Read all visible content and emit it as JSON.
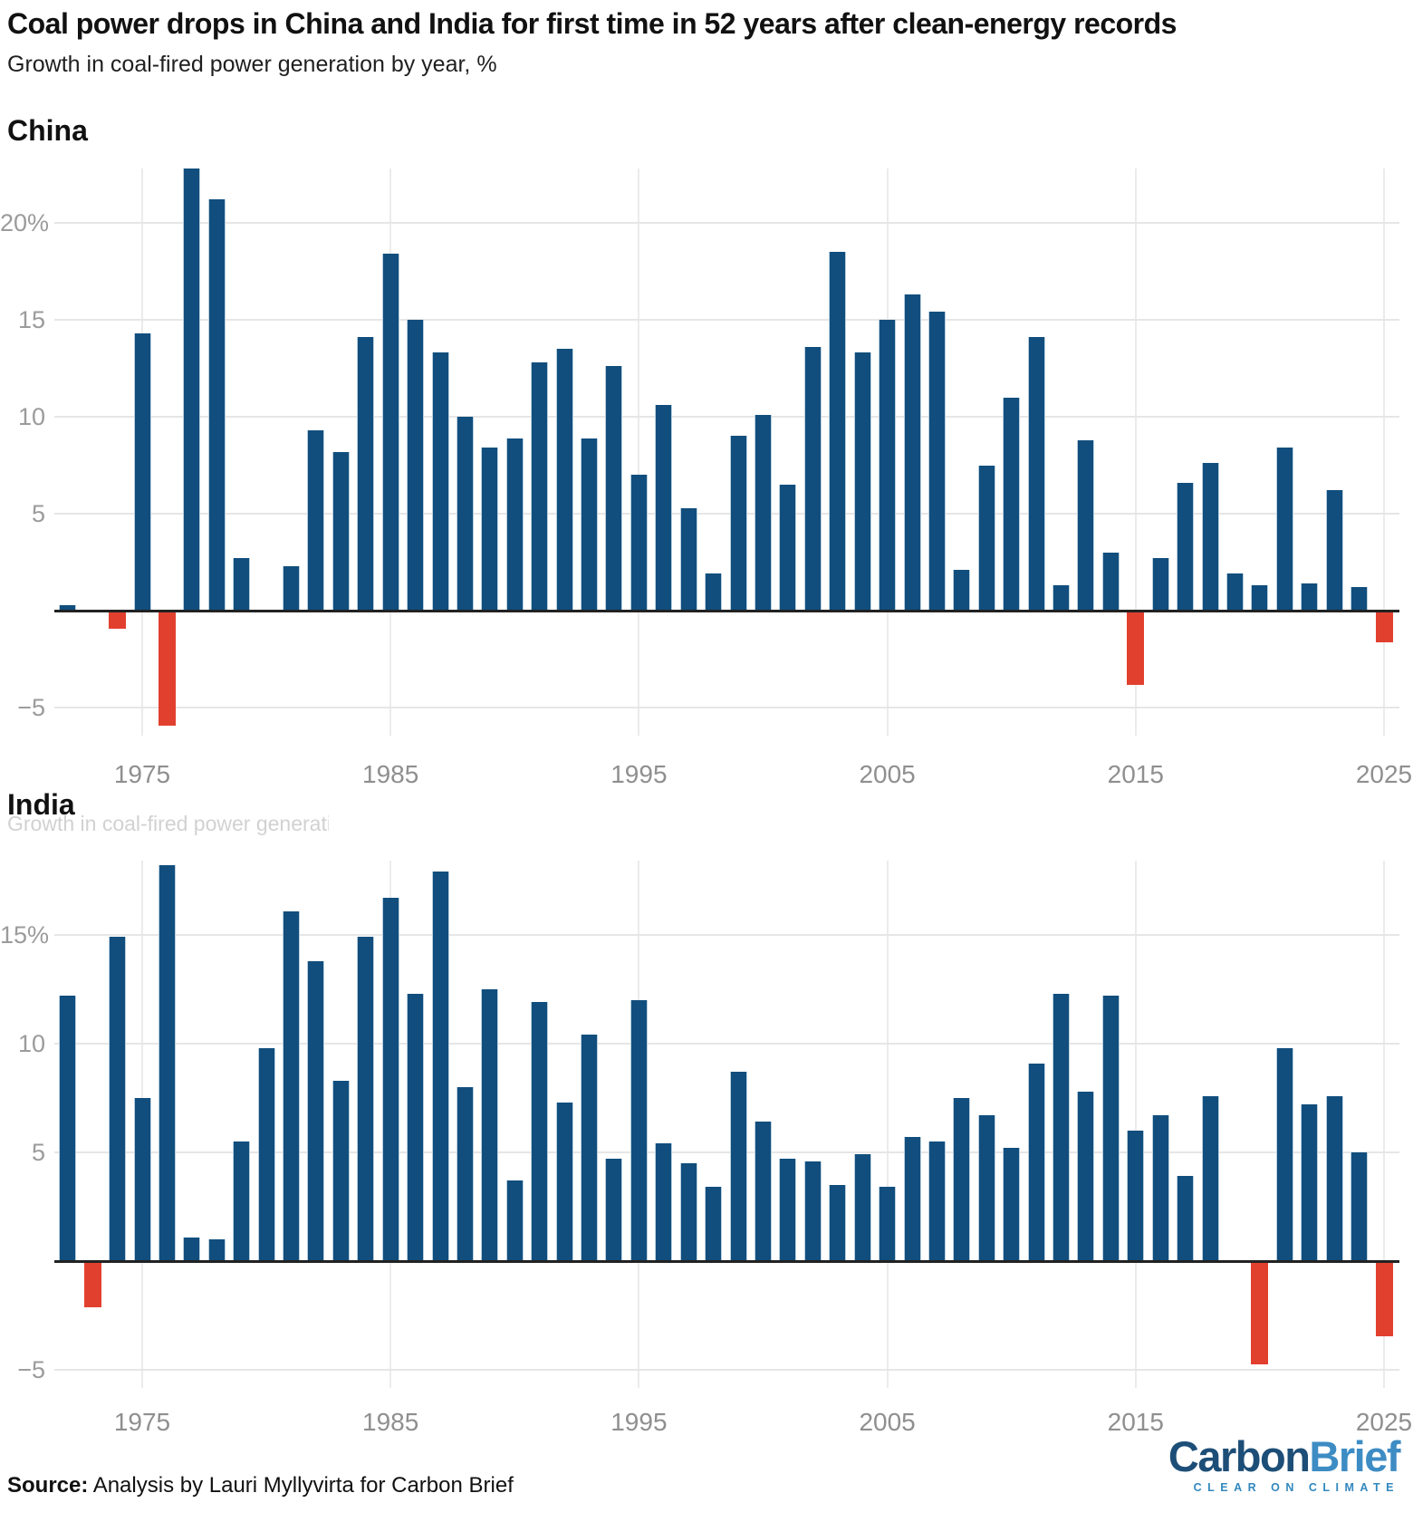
{
  "header": {
    "title": "Coal power drops in China and India for first time in 52 years after clean-energy records",
    "subtitle": "Growth in coal-fired power generation by year, %"
  },
  "colors": {
    "bar_positive": "#114e7d",
    "bar_negative": "#e2402f",
    "axis": "#222222",
    "gridline": "#e6e6e6",
    "tick_label": "#9b9b9b",
    "logo_carbon": "#1d4e77",
    "logo_brief": "#3d8cc4",
    "logo_tagline": "#3188be"
  },
  "chart_data": [
    {
      "type": "bar",
      "title": "China",
      "ylabel": "Growth in coal-fired power generation by year, %",
      "x": [
        1972,
        1973,
        1974,
        1975,
        1976,
        1977,
        1978,
        1979,
        1980,
        1981,
        1982,
        1983,
        1984,
        1985,
        1986,
        1987,
        1988,
        1989,
        1990,
        1991,
        1992,
        1993,
        1994,
        1995,
        1996,
        1997,
        1998,
        1999,
        2000,
        2001,
        2002,
        2003,
        2004,
        2005,
        2006,
        2007,
        2008,
        2009,
        2010,
        2011,
        2012,
        2013,
        2014,
        2015,
        2016,
        2017,
        2018,
        2019,
        2020,
        2021,
        2022,
        2023,
        2024,
        2025
      ],
      "values": [
        0.3,
        0.0,
        -0.9,
        14.3,
        -5.9,
        22.8,
        21.2,
        2.7,
        0.0,
        2.3,
        9.3,
        8.2,
        14.1,
        18.4,
        15.0,
        13.3,
        10.0,
        8.4,
        8.9,
        12.8,
        13.5,
        8.9,
        12.6,
        7.0,
        10.6,
        5.3,
        1.9,
        9.0,
        10.1,
        6.5,
        13.6,
        18.5,
        13.3,
        15.0,
        16.3,
        15.4,
        2.1,
        7.5,
        11.0,
        14.1,
        1.3,
        8.8,
        3.0,
        -3.8,
        2.7,
        6.6,
        7.6,
        1.9,
        1.3,
        8.4,
        1.4,
        6.2,
        1.2,
        -1.6
      ],
      "y_ticks": [
        {
          "value": 20,
          "label": "20%"
        },
        {
          "value": 15,
          "label": "15"
        },
        {
          "value": 10,
          "label": "10"
        },
        {
          "value": 5,
          "label": "5"
        },
        {
          "value": -5,
          "label": "−5"
        }
      ],
      "x_ticks": [
        {
          "value": 1975,
          "label": "1975"
        },
        {
          "value": 1985,
          "label": "1985"
        },
        {
          "value": 1995,
          "label": "1995"
        },
        {
          "value": 2005,
          "label": "2005"
        },
        {
          "value": 2015,
          "label": "2015"
        },
        {
          "value": 2025,
          "label": "2025"
        }
      ],
      "ylim": [
        -6.5,
        22.8
      ],
      "grid": true,
      "legend": "none"
    },
    {
      "type": "bar",
      "title": "India",
      "ghost_subtitle": "Growth in coal-fired power generation by year, %",
      "x": [
        1972,
        1973,
        1974,
        1975,
        1976,
        1977,
        1978,
        1979,
        1980,
        1981,
        1982,
        1983,
        1984,
        1985,
        1986,
        1987,
        1988,
        1989,
        1990,
        1991,
        1992,
        1993,
        1994,
        1995,
        1996,
        1997,
        1998,
        1999,
        2000,
        2001,
        2002,
        2003,
        2004,
        2005,
        2006,
        2007,
        2008,
        2009,
        2010,
        2011,
        2012,
        2013,
        2014,
        2015,
        2016,
        2017,
        2018,
        2019,
        2020,
        2021,
        2022,
        2023,
        2024,
        2025
      ],
      "values": [
        12.2,
        -2.1,
        14.9,
        7.5,
        18.2,
        1.1,
        1.0,
        5.5,
        9.8,
        16.1,
        13.8,
        8.3,
        14.9,
        16.7,
        12.3,
        17.9,
        8.0,
        12.5,
        3.7,
        11.9,
        7.3,
        10.4,
        4.7,
        12.0,
        5.4,
        4.5,
        3.4,
        8.7,
        6.4,
        4.7,
        4.6,
        3.5,
        4.9,
        3.4,
        5.7,
        5.5,
        7.5,
        6.7,
        5.2,
        9.1,
        12.3,
        7.8,
        12.2,
        6.0,
        6.7,
        3.9,
        7.6,
        0.0,
        -4.7,
        9.8,
        7.2,
        7.6,
        5.0,
        -3.4
      ],
      "y_ticks": [
        {
          "value": 15,
          "label": "15%"
        },
        {
          "value": 10,
          "label": "10"
        },
        {
          "value": 5,
          "label": "5"
        },
        {
          "value": -5,
          "label": "−5"
        }
      ],
      "x_ticks": [
        {
          "value": 1975,
          "label": "1975"
        },
        {
          "value": 1985,
          "label": "1985"
        },
        {
          "value": 1995,
          "label": "1995"
        },
        {
          "value": 2005,
          "label": "2005"
        },
        {
          "value": 2015,
          "label": "2015"
        },
        {
          "value": 2025,
          "label": "2025"
        }
      ],
      "ylim": [
        -5.8,
        18.4
      ],
      "grid": true,
      "legend": "none"
    }
  ],
  "footer": {
    "source_label": "Source:",
    "source_text": " Analysis by Lauri Myllyvirta for Carbon Brief",
    "logo": {
      "part1": "Carbon",
      "part2": "Brief",
      "tagline": "CLEAR ON CLIMATE"
    }
  }
}
